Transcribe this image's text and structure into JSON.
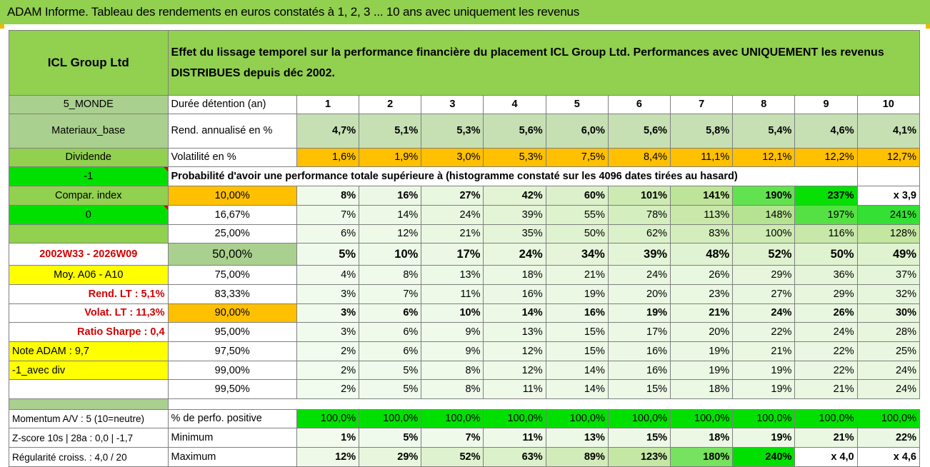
{
  "title": "ADAM Informe. Tableau des rendements en euros constatés à 1, 2, 3 ... 10 ans avec uniquement les revenus",
  "company": "ICL Group Ltd",
  "description_line1": "Effet du lissage temporel sur la performance financière du placement ICL Group Ltd. Performances avec UNIQUEMENT les revenus",
  "description_line2": "DISTRIBUES depuis déc 2002.",
  "left": {
    "region": "5_MONDE",
    "sector": "Materiaux_base",
    "dividend": "Dividende",
    "minus1": "-1",
    "compar": "Compar. index",
    "zero": "0",
    "period": "2002W33 - 2026W09",
    "moy": "Moy. A06 - A10",
    "rend_lt": "Rend. LT :   5,1%",
    "volat_lt": "Volat. LT :   11,3%",
    "sharpe": "Ratio Sharpe :    0,4",
    "note": "Note ADAM : 9,7",
    "avec_div": "-1_avec div",
    "momentum": "Momentum A/V : 5 (10=neutre)",
    "zscore": "Z-score 10s | 28a : 0,0 | -1,7",
    "regularite": "Régularité croiss. : 4,0 / 20"
  },
  "labels": {
    "duree": "Durée détention (an)",
    "rend": "Rend. annualisé en %",
    "volat": "Volatilité en %",
    "proba": "Probabilité d'avoir une performance totale supérieure à (histogramme constaté sur les 4096 dates tirées au hasard)",
    "perfo_pos": "% de perfo. positive",
    "minimum": "Minimum",
    "maximum": "Maximum"
  },
  "years": [
    "1",
    "2",
    "3",
    "4",
    "5",
    "6",
    "7",
    "8",
    "9",
    "10"
  ],
  "rend_values": [
    "4,7%",
    "5,1%",
    "5,3%",
    "5,6%",
    "6,0%",
    "5,6%",
    "5,8%",
    "5,4%",
    "4,6%",
    "4,1%"
  ],
  "volat_values": [
    "1,6%",
    "1,9%",
    "3,0%",
    "5,3%",
    "7,5%",
    "8,4%",
    "11,1%",
    "12,1%",
    "12,2%",
    "12,7%"
  ],
  "prob_rows": [
    {
      "threshold": "10,00%",
      "values": [
        "8%",
        "16%",
        "27%",
        "42%",
        "60%",
        "101%",
        "141%",
        "190%",
        "237%",
        "x 3,9"
      ]
    },
    {
      "threshold": "16,67%",
      "values": [
        "7%",
        "14%",
        "24%",
        "39%",
        "55%",
        "78%",
        "113%",
        "148%",
        "197%",
        "241%"
      ]
    },
    {
      "threshold": "25,00%",
      "values": [
        "6%",
        "12%",
        "21%",
        "35%",
        "50%",
        "62%",
        "83%",
        "100%",
        "116%",
        "128%"
      ]
    },
    {
      "threshold": "50,00%",
      "values": [
        "5%",
        "10%",
        "17%",
        "24%",
        "34%",
        "39%",
        "48%",
        "52%",
        "50%",
        "49%"
      ]
    },
    {
      "threshold": "75,00%",
      "values": [
        "4%",
        "8%",
        "13%",
        "18%",
        "21%",
        "24%",
        "26%",
        "29%",
        "36%",
        "37%"
      ]
    },
    {
      "threshold": "83,33%",
      "values": [
        "3%",
        "7%",
        "11%",
        "16%",
        "19%",
        "20%",
        "23%",
        "27%",
        "29%",
        "32%"
      ]
    },
    {
      "threshold": "90,00%",
      "values": [
        "3%",
        "6%",
        "10%",
        "14%",
        "16%",
        "19%",
        "21%",
        "24%",
        "26%",
        "30%"
      ]
    },
    {
      "threshold": "95,00%",
      "values": [
        "3%",
        "6%",
        "9%",
        "13%",
        "15%",
        "17%",
        "20%",
        "22%",
        "24%",
        "28%"
      ]
    },
    {
      "threshold": "97,50%",
      "values": [
        "2%",
        "6%",
        "9%",
        "12%",
        "15%",
        "16%",
        "19%",
        "21%",
        "22%",
        "25%"
      ]
    },
    {
      "threshold": "99,00%",
      "values": [
        "2%",
        "5%",
        "8%",
        "12%",
        "14%",
        "16%",
        "19%",
        "19%",
        "22%",
        "24%"
      ]
    },
    {
      "threshold": "99,50%",
      "values": [
        "2%",
        "5%",
        "8%",
        "11%",
        "14%",
        "15%",
        "18%",
        "19%",
        "21%",
        "24%"
      ]
    }
  ],
  "perfo_pos_values": [
    "100,0%",
    "100,0%",
    "100,0%",
    "100,0%",
    "100,0%",
    "100,0%",
    "100,0%",
    "100,0%",
    "100,0%",
    "100,0%"
  ],
  "min_values": [
    "1%",
    "5%",
    "7%",
    "11%",
    "13%",
    "15%",
    "18%",
    "19%",
    "21%",
    "22%"
  ],
  "max_values": [
    "12%",
    "29%",
    "52%",
    "63%",
    "89%",
    "123%",
    "180%",
    "240%",
    "x 4,0",
    "x 4,6"
  ],
  "colors": {
    "header_green": "#92d050",
    "accent_orange": "#ffc000",
    "bright_green": "#00e000",
    "highlight_yellow": "#ffff00",
    "label_red": "#d40000"
  }
}
